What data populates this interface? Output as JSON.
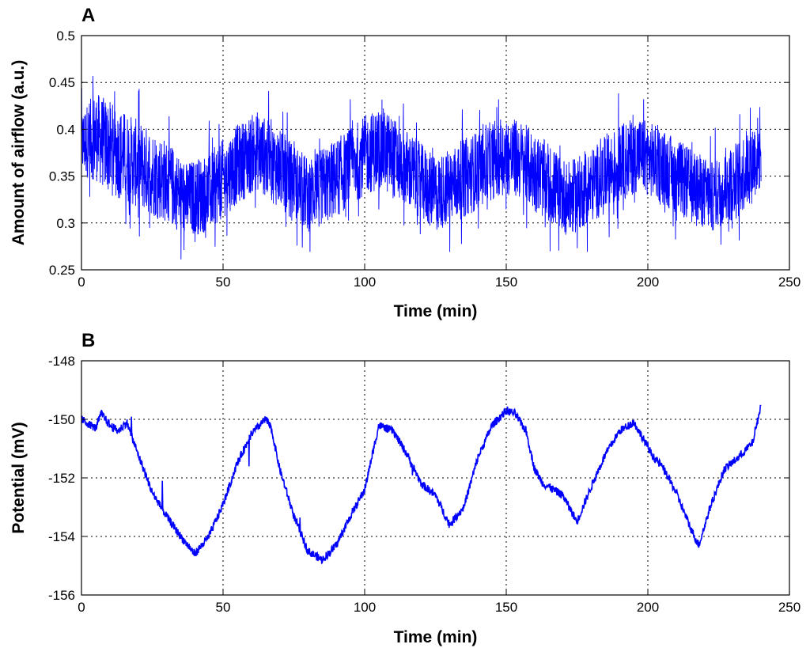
{
  "chart_data": [
    {
      "panel_label": "A",
      "type": "line",
      "xlabel": "Time (min)",
      "ylabel": "Amount of airflow (a.u.)",
      "xlim": [
        0,
        250
      ],
      "ylim": [
        0.25,
        0.5
      ],
      "xticks": [
        "0",
        "50",
        "100",
        "150",
        "200",
        "250"
      ],
      "yticks": [
        "0.25",
        "0.3",
        "0.35",
        "0.4",
        "0.45",
        "0.5"
      ],
      "grid": true,
      "line_color": "#0000ff",
      "series": [
        {
          "kind": "envelope",
          "x": [
            0,
            5,
            10,
            20,
            30,
            37,
            45,
            55,
            62,
            70,
            80,
            90,
            100,
            106,
            115,
            125,
            135,
            148,
            155,
            165,
            172,
            180,
            190,
            197,
            205,
            215,
            223,
            232,
            240
          ],
          "upper": [
            0.42,
            0.44,
            0.43,
            0.41,
            0.39,
            0.365,
            0.375,
            0.405,
            0.42,
            0.4,
            0.37,
            0.39,
            0.415,
            0.425,
            0.4,
            0.37,
            0.39,
            0.415,
            0.41,
            0.385,
            0.365,
            0.38,
            0.405,
            0.415,
            0.4,
            0.38,
            0.365,
            0.39,
            0.42
          ],
          "lower": [
            0.35,
            0.345,
            0.33,
            0.315,
            0.3,
            0.285,
            0.29,
            0.32,
            0.335,
            0.315,
            0.29,
            0.305,
            0.33,
            0.335,
            0.315,
            0.29,
            0.305,
            0.33,
            0.325,
            0.3,
            0.285,
            0.3,
            0.32,
            0.335,
            0.32,
            0.3,
            0.29,
            0.305,
            0.335
          ]
        }
      ]
    },
    {
      "panel_label": "B",
      "type": "line",
      "xlabel": "Time (min)",
      "ylabel": "Potential (mV)",
      "xlim": [
        0,
        250
      ],
      "ylim": [
        -156,
        -148
      ],
      "xticks": [
        "0",
        "50",
        "100",
        "150",
        "200",
        "250"
      ],
      "yticks": [
        "-156",
        "-154",
        "-152",
        "-150",
        "-148"
      ],
      "grid": true,
      "line_color": "#0000ff",
      "series": [
        {
          "x": [
            0,
            5,
            7,
            10,
            13,
            16,
            20,
            25,
            30,
            35,
            40,
            45,
            50,
            55,
            60,
            65,
            67,
            70,
            75,
            80,
            85,
            90,
            95,
            100,
            105,
            110,
            115,
            120,
            125,
            130,
            135,
            140,
            145,
            150,
            153,
            157,
            160,
            163,
            165,
            170,
            175,
            180,
            185,
            190,
            195,
            198,
            202,
            205,
            210,
            215,
            218,
            222,
            227,
            232,
            237,
            240
          ],
          "y": [
            -150.0,
            -150.3,
            -149.8,
            -150.2,
            -150.4,
            -150.1,
            -151.2,
            -152.5,
            -153.3,
            -154.0,
            -154.6,
            -154.0,
            -152.9,
            -151.5,
            -150.5,
            -150.0,
            -150.3,
            -151.7,
            -153.3,
            -154.5,
            -154.8,
            -154.3,
            -153.3,
            -152.4,
            -150.2,
            -150.4,
            -151.2,
            -152.2,
            -152.6,
            -153.6,
            -153.0,
            -151.3,
            -150.2,
            -149.7,
            -149.8,
            -150.4,
            -151.7,
            -152.2,
            -152.3,
            -152.6,
            -153.5,
            -152.3,
            -151.2,
            -150.4,
            -150.1,
            -150.6,
            -151.3,
            -151.6,
            -152.5,
            -153.7,
            -154.3,
            -153.0,
            -151.7,
            -151.3,
            -150.8,
            -149.5
          ]
        }
      ]
    }
  ]
}
